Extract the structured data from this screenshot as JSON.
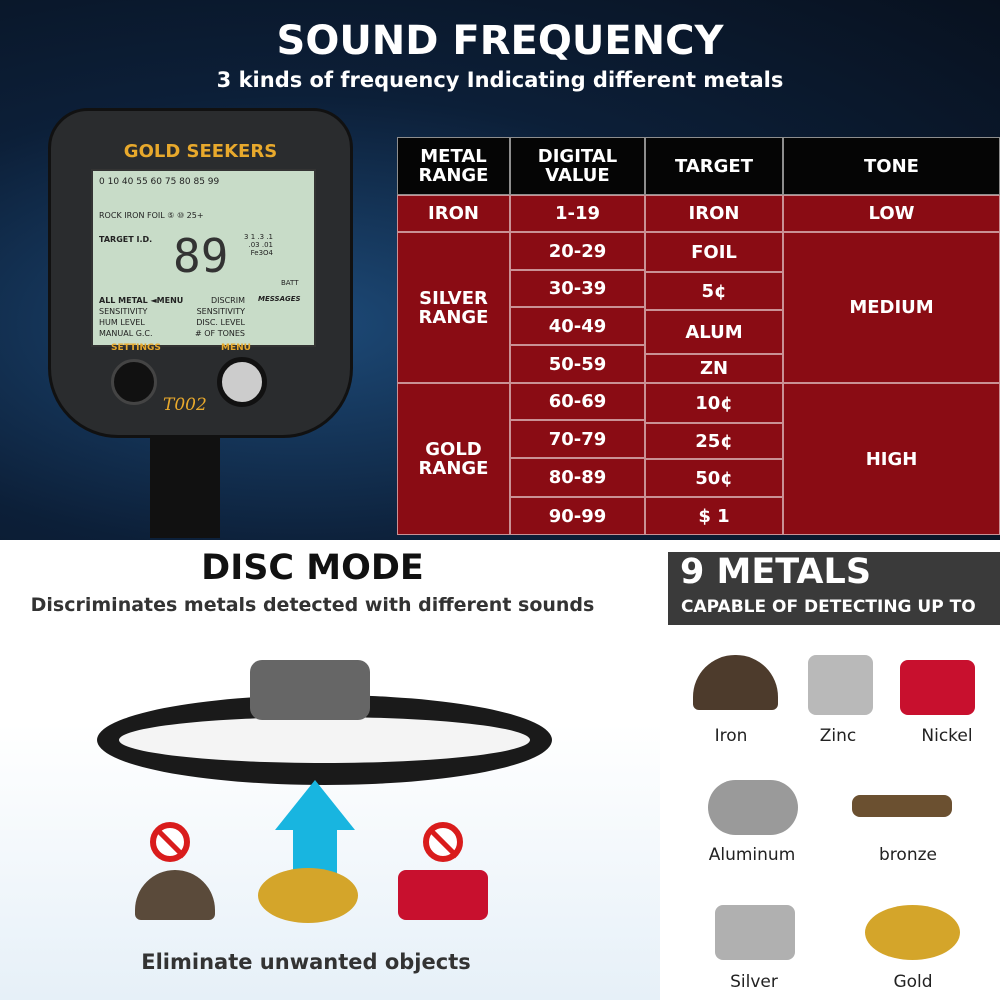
{
  "header": {
    "title": "SOUND FREQUENCY",
    "subtitle": "3 kinds of frequency Indicating different metals"
  },
  "device": {
    "brand": "GOLD SEEKERS",
    "scale": "0 10 40 55 60 75 80 85 99",
    "targets": "ROCK IRON FOIL ⑤ ⑩ 25+",
    "target_id_label": "TARGET I.D.",
    "target_id": "89",
    "depth": "3 1 .3 .1 .03 .01 Fe3O4",
    "batt": "BATT",
    "messages": "MESSAGES",
    "menu": [
      "ALL METAL ◄MENU",
      "SENSITIVITY",
      "HUM LEVEL",
      "MANUAL G.C."
    ],
    "menu_right": [
      "DISCRIM",
      "SENSITIVITY",
      "DISC. LEVEL",
      "# OF TONES"
    ],
    "settings_label": "SETTINGS",
    "menu_label": "MENU",
    "model": "T002"
  },
  "table": {
    "headers": [
      "METAL RANGE",
      "DIGITAL VALUE",
      "TARGET",
      "TONE"
    ],
    "ranges": [
      "IRON",
      "SILVER RANGE",
      "GOLD RANGE"
    ],
    "values": [
      "1-19",
      "20-29",
      "30-39",
      "40-49",
      "50-59",
      "60-69",
      "70-79",
      "80-89",
      "90-99"
    ],
    "targets": [
      "IRON",
      "FOIL",
      "5¢",
      "ALUM",
      "ZN",
      "10¢",
      "25¢",
      "50¢",
      "$ 1"
    ],
    "tones": [
      "LOW",
      "MEDIUM",
      "HIGH"
    ]
  },
  "disc": {
    "title": "DISC MODE",
    "subtitle": "Discriminates metals detected with different sounds",
    "caption": "Eliminate unwanted objects"
  },
  "metals": {
    "title": "9 METALS",
    "subtitle": "CAPABLE OF DETECTING UP TO",
    "items": [
      "Iron",
      "Zinc",
      "Nickel",
      "Aluminum",
      "bronze",
      "Silver",
      "Gold"
    ]
  },
  "colors": {
    "table_red": "#8a0c14",
    "header_black": "#050505",
    "gold": "#e8a92c",
    "banner": "#3a3a3a"
  }
}
